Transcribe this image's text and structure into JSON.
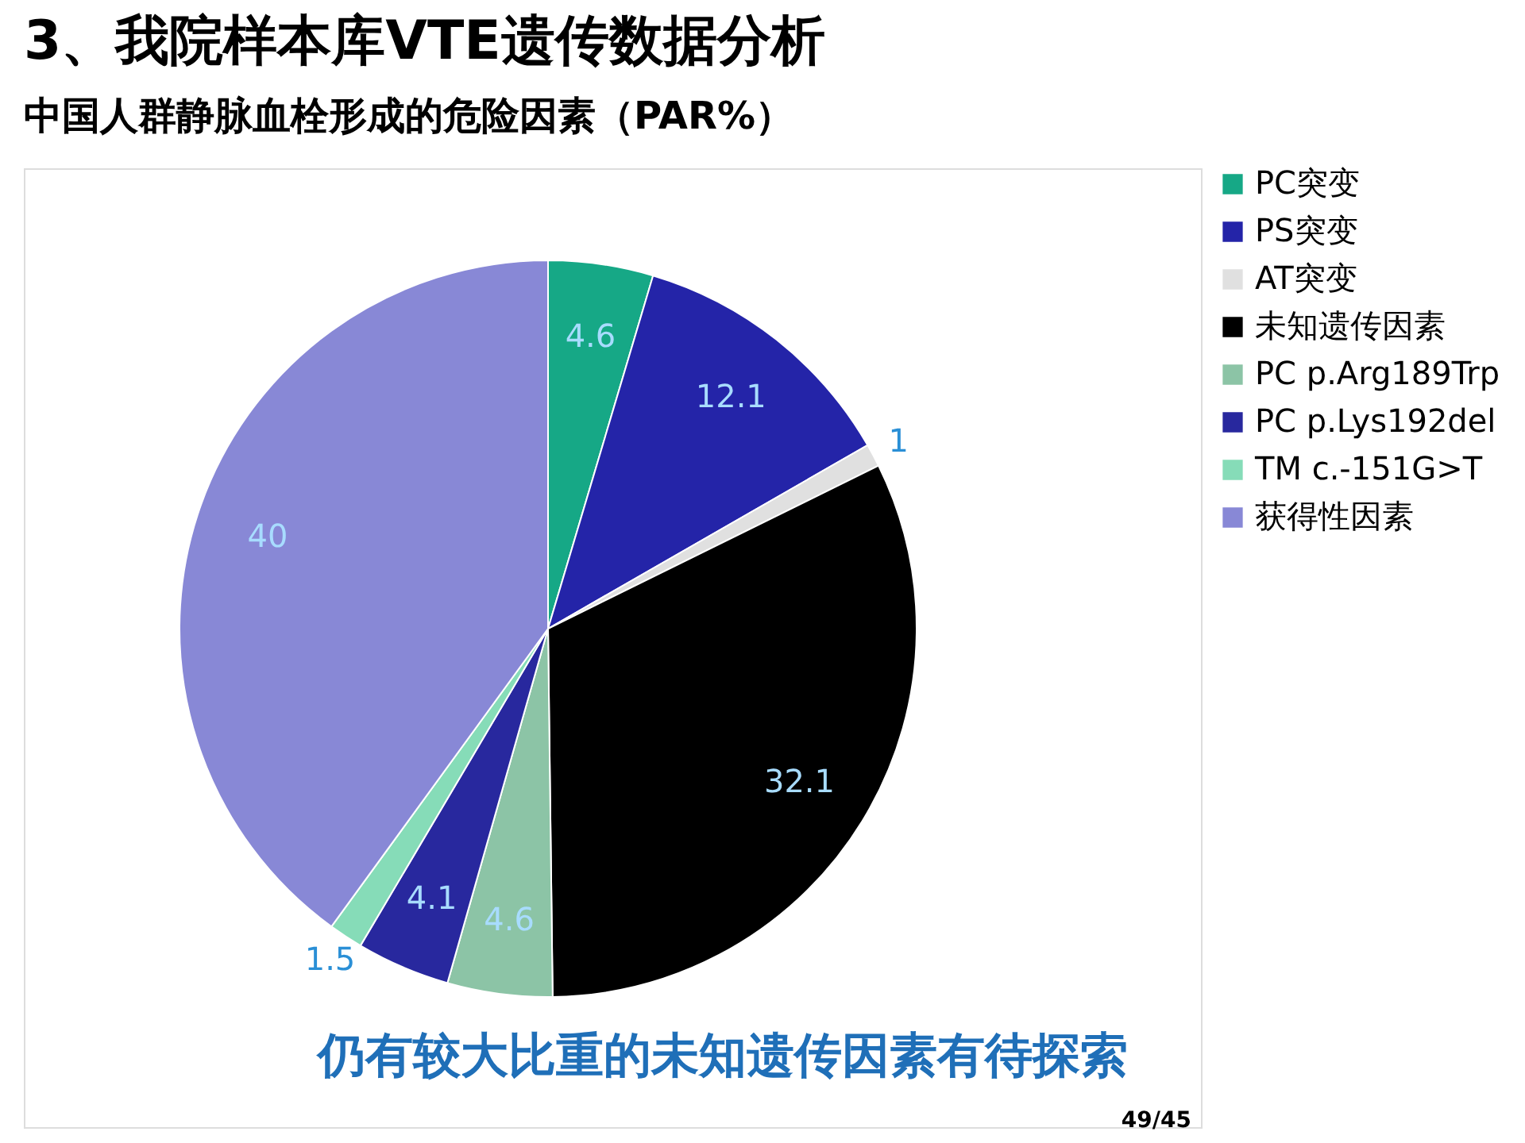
{
  "chart_data": {
    "type": "pie",
    "title": "3、我院样本库VTE遗传数据分析",
    "subtitle": "中国人群静脉血栓形成的危险因素（PAR%）",
    "categories": [
      "PC突变",
      "PS突变",
      "AT突变",
      "未知遗传因素",
      "PC p.Arg189Trp",
      "PC p.Lys192del",
      "TM c.-151G>T",
      "获得性因素"
    ],
    "values": [
      4.6,
      12.1,
      1,
      32.1,
      4.6,
      4.1,
      1.5,
      40
    ],
    "colors": [
      "#16a886",
      "#2424a8",
      "#e0e0e0",
      "#000000",
      "#8cc4a6",
      "#28289e",
      "#86dcb8",
      "#8888d6"
    ],
    "data_labels": true,
    "legend": "right",
    "annotations": [
      "仍有较大比重的未知遗传因素有待探索",
      "49/45"
    ]
  }
}
